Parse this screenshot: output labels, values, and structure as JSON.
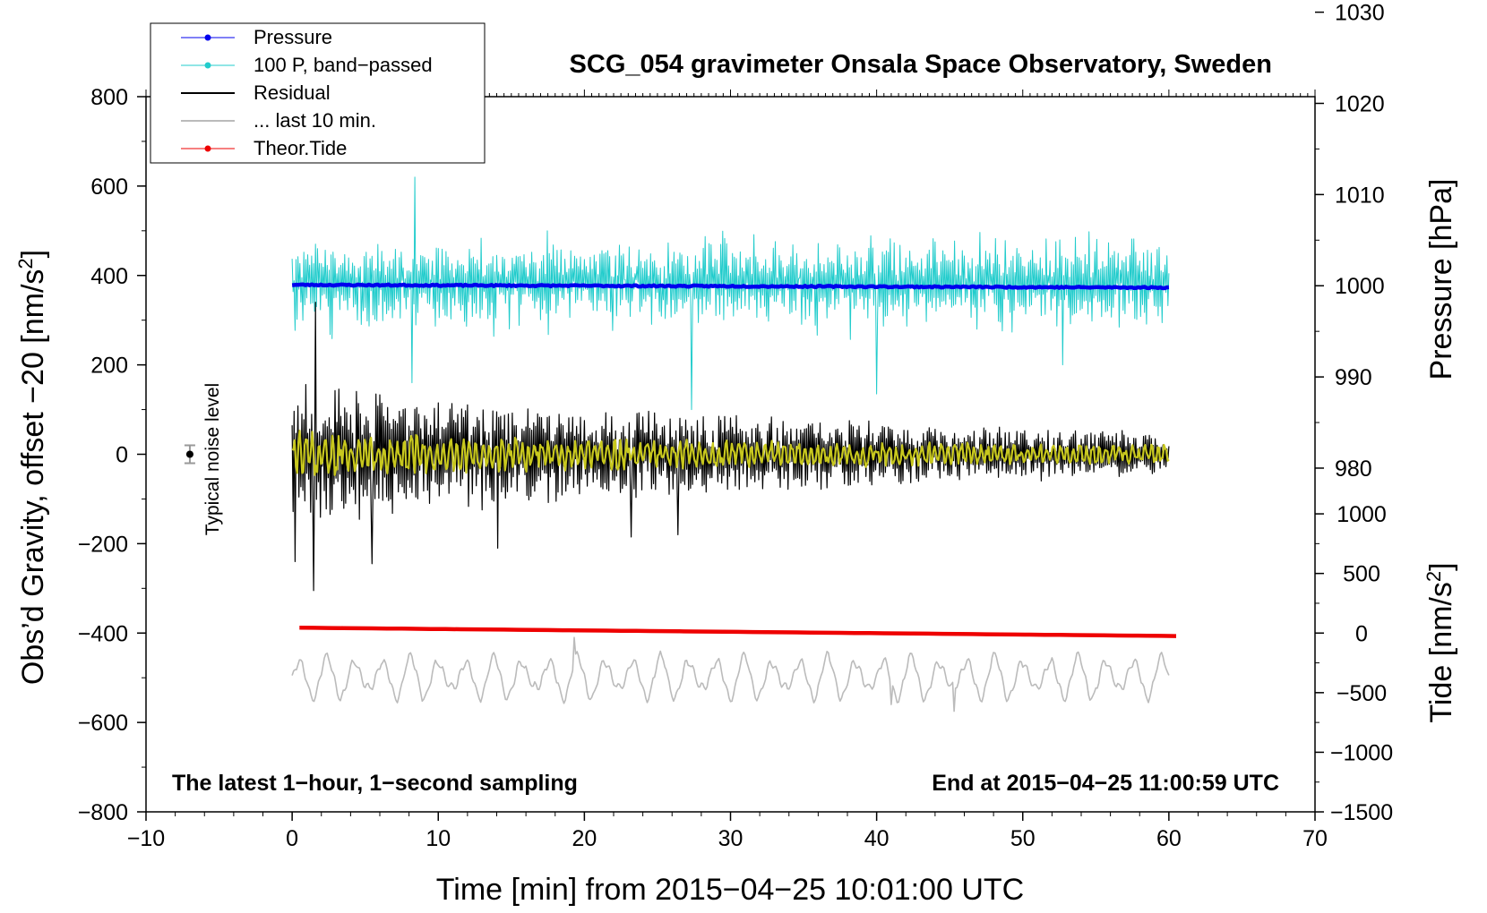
{
  "chart_data": {
    "type": "line",
    "title": "SCG_054 gravimeter Onsala Space Observatory, Sweden",
    "xlabel": "Time [min] from 2015−04−25 10:01:00 UTC",
    "ylabel": "Obs'd Gravity, offset −20 [nm/s²]",
    "ylabel_parts": {
      "pre": "Obs’d Gravity, offset −20 [nm/s",
      "sup": "2",
      "post": "]"
    },
    "xlim": [
      -10,
      70
    ],
    "ylim": [
      -800,
      800
    ],
    "x_ticks": [
      {
        "v": -10,
        "label": "−10"
      },
      {
        "v": 0,
        "label": "0"
      },
      {
        "v": 10,
        "label": "10"
      },
      {
        "v": 20,
        "label": "20"
      },
      {
        "v": 30,
        "label": "30"
      },
      {
        "v": 40,
        "label": "40"
      },
      {
        "v": 50,
        "label": "50"
      },
      {
        "v": 60,
        "label": "60"
      },
      {
        "v": 70,
        "label": "70"
      }
    ],
    "y_ticks": [
      {
        "v": 800,
        "label": "800"
      },
      {
        "v": 600,
        "label": "600"
      },
      {
        "v": 400,
        "label": "400"
      },
      {
        "v": 200,
        "label": "200"
      },
      {
        "v": 0,
        "label": "0"
      },
      {
        "v": -200,
        "label": "−200"
      },
      {
        "v": -400,
        "label": "−400"
      },
      {
        "v": -600,
        "label": "−600"
      },
      {
        "v": -800,
        "label": "−800"
      }
    ],
    "pressure_axis": {
      "label": "Pressure [hPa]",
      "ticks": [
        {
          "v": 1030,
          "label": "1030"
        },
        {
          "v": 1020,
          "label": "1020"
        },
        {
          "v": 1010,
          "label": "1010"
        },
        {
          "v": 1000,
          "label": "1000"
        },
        {
          "v": 990,
          "label": "990"
        },
        {
          "v": 980,
          "label": "980"
        }
      ],
      "ref_value": 1000,
      "ref_gravity": 377,
      "gravity_per_unit": 20.4
    },
    "tide_axis": {
      "label_pre": "Tide [nm/s",
      "label_sup": "2",
      "label_post": "]",
      "ticks": [
        {
          "v": 1000,
          "label": "1000"
        },
        {
          "v": 500,
          "label": "500"
        },
        {
          "v": 0,
          "label": "0"
        },
        {
          "v": -500,
          "label": "−500"
        },
        {
          "v": -1000,
          "label": "−1000"
        },
        {
          "v": -1500,
          "label": "−1500"
        }
      ],
      "ref_value": 0,
      "ref_gravity": -400,
      "gravity_per_unit": 0.2667
    },
    "legend": {
      "position": "top-left",
      "entries": [
        {
          "name": "Pressure",
          "color": "#0000ee",
          "marker": true
        },
        {
          "name": "100 P, band−passed",
          "color": "#22cccc",
          "marker": true
        },
        {
          "name": "Residual",
          "color": "#000000",
          "marker": false
        },
        {
          "name": "... last 10 min.",
          "color": "#bbbbbb",
          "marker": false
        },
        {
          "name": "Theor.Tide",
          "color": "#ee0000",
          "marker": true
        }
      ]
    },
    "series": [
      {
        "name": "Pressure",
        "color": "#0000ee",
        "x_range": [
          0,
          60
        ],
        "axis": "pressure",
        "start": 1000.1,
        "end": 999.8,
        "noise": 0.15
      },
      {
        "name": "100 P, band−passed",
        "color": "#22cccc",
        "x_range": [
          0,
          60
        ],
        "axis": "gravity",
        "center": 385,
        "amplitude": 90,
        "spikes": [
          [
            8.4,
            620
          ],
          [
            8.2,
            160
          ],
          [
            27.3,
            100
          ],
          [
            40.0,
            135
          ],
          [
            52.7,
            200
          ]
        ]
      },
      {
        "name": "Residual",
        "color": "#000000",
        "x_range": [
          0,
          60
        ],
        "axis": "gravity",
        "center": 0,
        "amplitude_start": 160,
        "amplitude_end": 45,
        "spikes": [
          [
            1.6,
            340
          ],
          [
            1.5,
            -305
          ],
          [
            0.2,
            -240
          ],
          [
            5.5,
            -245
          ],
          [
            14.1,
            -210
          ],
          [
            23.2,
            -185
          ],
          [
            26.4,
            -180
          ]
        ]
      },
      {
        "name": "Residual (filtered)",
        "color": "#c8c81e",
        "x_range": [
          0,
          60
        ],
        "axis": "gravity",
        "center": 0,
        "amplitude_start": 60,
        "amplitude_end": 22
      },
      {
        "name": "... last 10 min.",
        "color": "#bbbbbb",
        "x_range": [
          0,
          60
        ],
        "axis": "gravity",
        "center": -500,
        "amplitude": 50,
        "extremes": [
          [
            19.3,
            -410
          ],
          [
            45.3,
            -575
          ],
          [
            41.0,
            -560
          ]
        ]
      },
      {
        "name": "Theor.Tide",
        "color": "#ee0000",
        "x_range": [
          0.5,
          60.5
        ],
        "axis": "tide",
        "start": 45,
        "end": -25
      }
    ],
    "noise_marker": {
      "x": -7,
      "y": 0,
      "error": 20,
      "label": "Typical noise level"
    },
    "annotations": {
      "bottom_left": "The latest 1−hour, 1−second sampling",
      "bottom_right": "End at 2015−04−25 11:00:59 UTC"
    }
  }
}
